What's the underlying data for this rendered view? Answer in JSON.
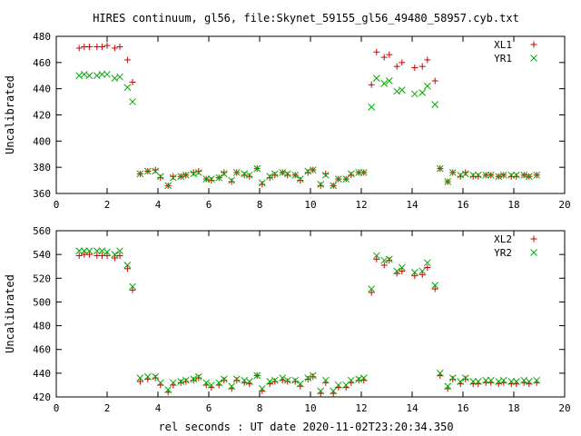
{
  "title": "HIRES continuum, gl56, file:Skynet_59155_gl56_49480_58957.cyb.txt",
  "xlabel": "rel seconds : UT date 2020-11-02T23:20:34.350",
  "colors": {
    "plus": "#cc0000",
    "cross": "#00aa00",
    "axis": "#000000"
  },
  "chart_data": [
    {
      "type": "scatter",
      "ylabel": "Uncalibrated",
      "xlim": [
        0,
        20
      ],
      "ylim": [
        360,
        480
      ],
      "xticks": [
        0,
        2,
        4,
        6,
        8,
        10,
        12,
        14,
        16,
        18,
        20
      ],
      "yticks": [
        360,
        380,
        400,
        420,
        440,
        460,
        480
      ],
      "legend_position": "top-right",
      "grid": false,
      "series": [
        {
          "name": "XL1",
          "marker": "plus",
          "x": [
            0.9,
            1.1,
            1.3,
            1.5,
            1.7,
            1.9,
            2.1,
            2.3,
            2.5,
            2.7,
            2.9,
            3.1,
            3.3,
            3.6,
            3.8,
            4.0,
            4.2,
            4.4,
            4.6,
            4.8,
            5.0,
            5.3,
            5.5,
            5.7,
            5.9,
            6.1,
            6.4,
            6.6,
            6.8,
            7.1,
            7.3,
            7.5,
            7.8,
            8.0,
            8.2,
            8.4,
            8.6,
            8.8,
            9.0,
            9.2,
            9.4,
            9.6,
            9.8,
            10.0,
            10.2,
            10.4,
            10.6,
            10.8,
            11.0,
            11.2,
            11.5,
            11.7,
            11.9,
            12.1,
            12.3,
            12.5,
            12.7,
            12.9,
            13.2,
            13.4,
            13.6,
            13.8,
            14.0,
            14.2,
            14.4,
            14.7,
            14.9,
            15.2,
            15.4,
            15.7,
            15.9,
            16.1,
            16.3,
            16.5,
            17.0,
            17.2,
            17.5,
            17.7,
            17.9,
            18.1,
            18.4,
            18.6,
            18.8
          ],
          "y": [
            471,
            472,
            472,
            472,
            472,
            473,
            471,
            469,
            472,
            462,
            445,
            375,
            377,
            378,
            372,
            366,
            373,
            373,
            374,
            376,
            377,
            371,
            370,
            372,
            376,
            369,
            376,
            374,
            373,
            379,
            367,
            372,
            374,
            376,
            374,
            374,
            370,
            376,
            378,
            366,
            375,
            366,
            371,
            371,
            374,
            376,
            444,
            468,
            464,
            466,
            457,
            460,
            456,
            457,
            462,
            446,
            380,
            368,
            376,
            373,
            376,
            373,
            373,
            375,
            374,
            372,
            373,
            374,
            373,
            374,
            373,
            374,
            373,
            373,
            373,
            373,
            373,
            374,
            373,
            373,
            373,
            373,
            374
          ],
          "note_x": [
            0.9,
            1.2,
            1.4,
            1.7,
            1.9,
            2.2,
            2.4,
            2.6,
            2.9,
            3.1,
            3.6,
            3.9,
            4.1,
            4.3,
            4.6,
            4.8,
            5.1,
            5.3,
            5.5,
            5.8,
            6.0,
            6.3,
            6.5,
            6.8,
            7.0,
            7.3,
            7.5,
            7.8,
            8.0,
            8.3,
            8.5,
            8.8,
            9.0,
            9.3,
            9.5,
            9.8,
            10.0,
            10.3,
            10.5,
            10.8,
            11.0,
            11.3,
            11.5,
            11.8,
            12.0,
            12.3,
            12.5,
            12.8,
            13.0,
            13.3,
            13.5,
            13.8,
            14.0,
            14.3,
            14.5,
            14.8,
            15.0,
            15.3,
            15.5,
            15.8,
            16.0,
            16.3,
            16.5,
            16.8,
            17.1,
            17.3,
            17.6,
            17.8,
            18.1,
            18.3,
            18.6,
            18.8
          ]
        }
      ]
    }
  ]
}
